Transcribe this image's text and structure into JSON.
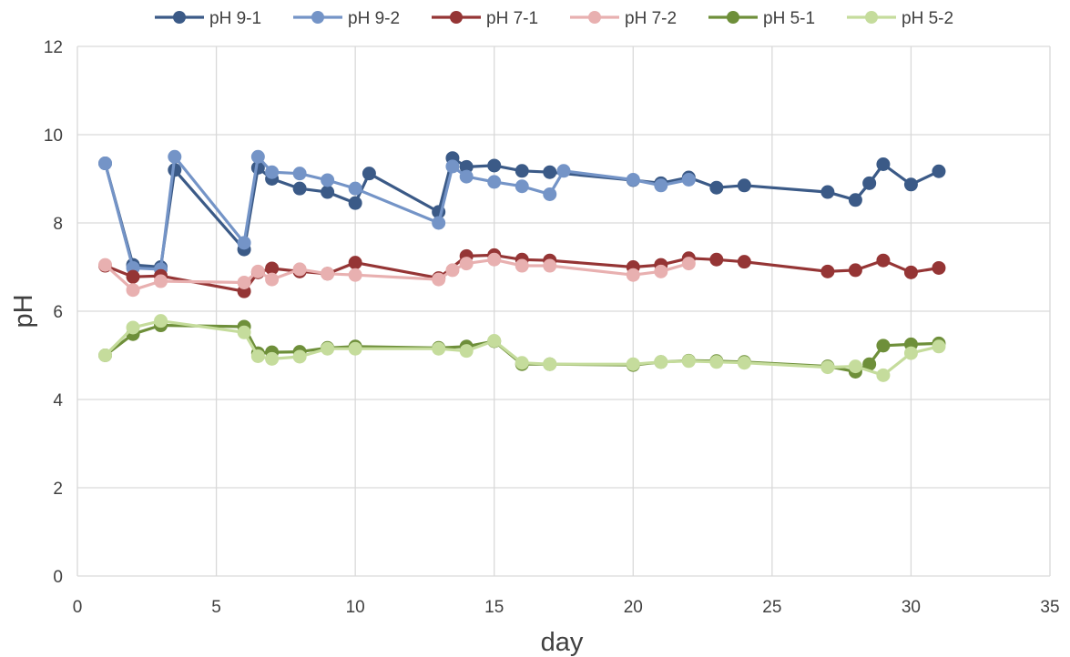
{
  "chart_data": {
    "type": "line",
    "title": "",
    "xlabel": "day",
    "ylabel": "pH",
    "xlim": [
      0,
      35
    ],
    "ylim": [
      0,
      12
    ],
    "x_ticks": [
      "0",
      "5",
      "10",
      "15",
      "20",
      "25",
      "30",
      "35"
    ],
    "y_ticks": [
      "0",
      "2",
      "4",
      "6",
      "8",
      "10",
      "12"
    ],
    "grid": true,
    "legend_position": "top",
    "series": [
      {
        "name": "pH 9-1",
        "color": "#3b5a87",
        "x": [
          1,
          2,
          3,
          3.5,
          6,
          6.5,
          7,
          8,
          9,
          10,
          10.5,
          13,
          13.5,
          14,
          15,
          16,
          17,
          20,
          21,
          22,
          23,
          24,
          27,
          28,
          28.5,
          29,
          30,
          31
        ],
        "y": [
          9.35,
          7.05,
          7.0,
          9.2,
          7.4,
          9.25,
          9.0,
          8.78,
          8.7,
          8.45,
          9.12,
          8.25,
          9.47,
          9.27,
          9.3,
          9.18,
          9.15,
          8.97,
          8.9,
          9.03,
          8.8,
          8.85,
          8.7,
          8.52,
          8.9,
          9.33,
          8.87,
          9.17
        ]
      },
      {
        "name": "pH 9-2",
        "color": "#7494c7",
        "x": [
          1,
          2,
          3,
          3.5,
          6,
          6.5,
          7,
          8,
          9,
          10,
          13,
          13.5,
          14,
          15,
          16,
          17,
          17.5,
          20,
          21,
          22
        ],
        "y": [
          9.35,
          6.98,
          6.95,
          9.5,
          7.55,
          9.5,
          9.15,
          9.12,
          8.97,
          8.78,
          8.0,
          9.28,
          9.05,
          8.93,
          8.83,
          8.65,
          9.18,
          8.98,
          8.85,
          8.98
        ]
      },
      {
        "name": "pH 7-1",
        "color": "#953535",
        "x": [
          1,
          2,
          3,
          6,
          6.5,
          7,
          8,
          9,
          10,
          13,
          14,
          15,
          16,
          17,
          20,
          21,
          22,
          23,
          24,
          27,
          28,
          29,
          30,
          31
        ],
        "y": [
          7.03,
          6.78,
          6.8,
          6.45,
          6.88,
          6.97,
          6.9,
          6.85,
          7.1,
          6.75,
          7.25,
          7.27,
          7.17,
          7.15,
          7.0,
          7.05,
          7.2,
          7.17,
          7.12,
          6.9,
          6.93,
          7.15,
          6.88,
          6.98
        ]
      },
      {
        "name": "pH 7-2",
        "color": "#e8b0b0",
        "x": [
          1,
          2,
          3,
          6,
          6.5,
          7,
          8,
          9,
          10,
          13,
          13.5,
          14,
          15,
          16,
          17,
          20,
          21,
          22
        ],
        "y": [
          7.05,
          6.48,
          6.68,
          6.65,
          6.9,
          6.72,
          6.95,
          6.85,
          6.82,
          6.72,
          6.93,
          7.08,
          7.17,
          7.03,
          7.03,
          6.82,
          6.9,
          7.08
        ]
      },
      {
        "name": "pH 5-1",
        "color": "#6e8f3a",
        "x": [
          1,
          2,
          3,
          6,
          6.5,
          7,
          8,
          9,
          10,
          13,
          14,
          15,
          16,
          17,
          20,
          21,
          22,
          23,
          24,
          27,
          28,
          28.5,
          29,
          30,
          31
        ],
        "y": [
          5.0,
          5.48,
          5.68,
          5.65,
          5.05,
          5.07,
          5.08,
          5.17,
          5.2,
          5.17,
          5.2,
          5.32,
          4.8,
          4.8,
          4.78,
          4.85,
          4.88,
          4.87,
          4.85,
          4.75,
          4.63,
          4.8,
          5.22,
          5.25,
          5.27
        ]
      },
      {
        "name": "pH 5-2",
        "color": "#c5dc9c",
        "x": [
          1,
          2,
          3,
          6,
          6.5,
          7,
          8,
          9,
          10,
          13,
          14,
          15,
          16,
          17,
          20,
          21,
          22,
          23,
          24,
          27,
          28,
          29,
          30,
          31
        ],
        "y": [
          5.0,
          5.63,
          5.78,
          5.52,
          4.98,
          4.92,
          4.97,
          5.15,
          5.15,
          5.15,
          5.1,
          5.33,
          4.83,
          4.8,
          4.8,
          4.85,
          4.87,
          4.85,
          4.83,
          4.73,
          4.75,
          4.55,
          5.05,
          5.2
        ]
      }
    ]
  }
}
